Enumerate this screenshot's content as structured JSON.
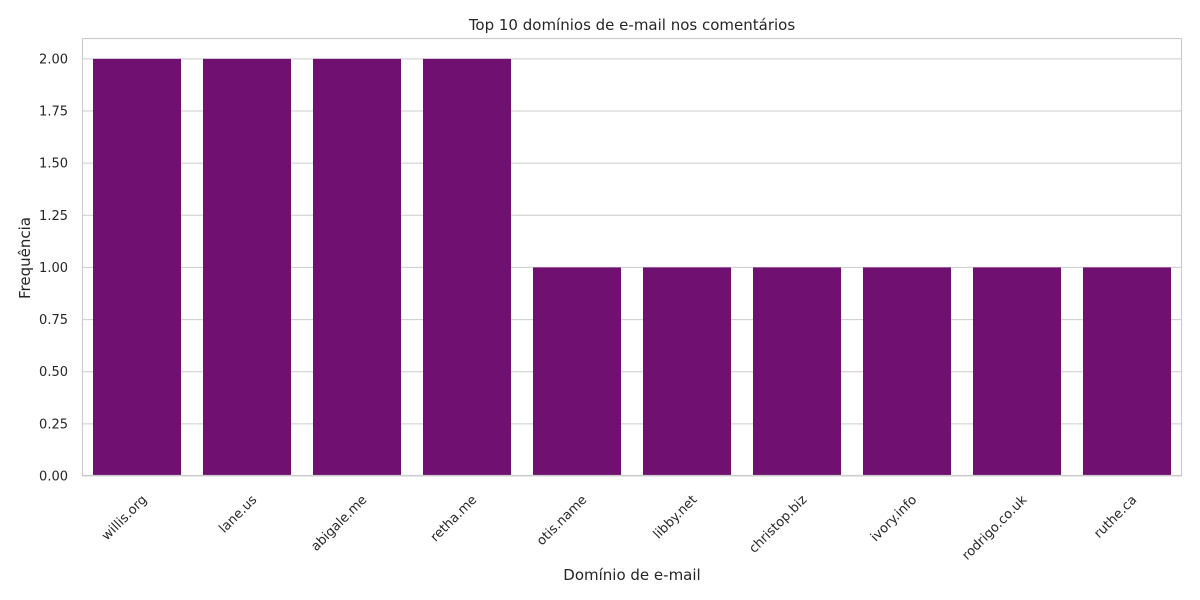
{
  "chart_data": {
    "type": "bar",
    "title": "Top 10 domínios de e-mail nos comentários",
    "xlabel": "Domínio de e-mail",
    "ylabel": "Frequência",
    "categories": [
      "willis.org",
      "lane.us",
      "abigale.me",
      "retha.me",
      "otis.name",
      "libby.net",
      "christop.biz",
      "ivory.info",
      "rodrigo.co.uk",
      "ruthe.ca"
    ],
    "values": [
      2,
      2,
      2,
      2,
      1,
      1,
      1,
      1,
      1,
      1
    ],
    "ylim": [
      0,
      2.1
    ],
    "yticks": [
      "0.00",
      "0.25",
      "0.50",
      "0.75",
      "1.00",
      "1.25",
      "1.50",
      "1.75",
      "2.00"
    ],
    "grid": true,
    "bar_color": "#701070",
    "grid_color": "#cccccc",
    "frame_color": "#cccccc"
  }
}
